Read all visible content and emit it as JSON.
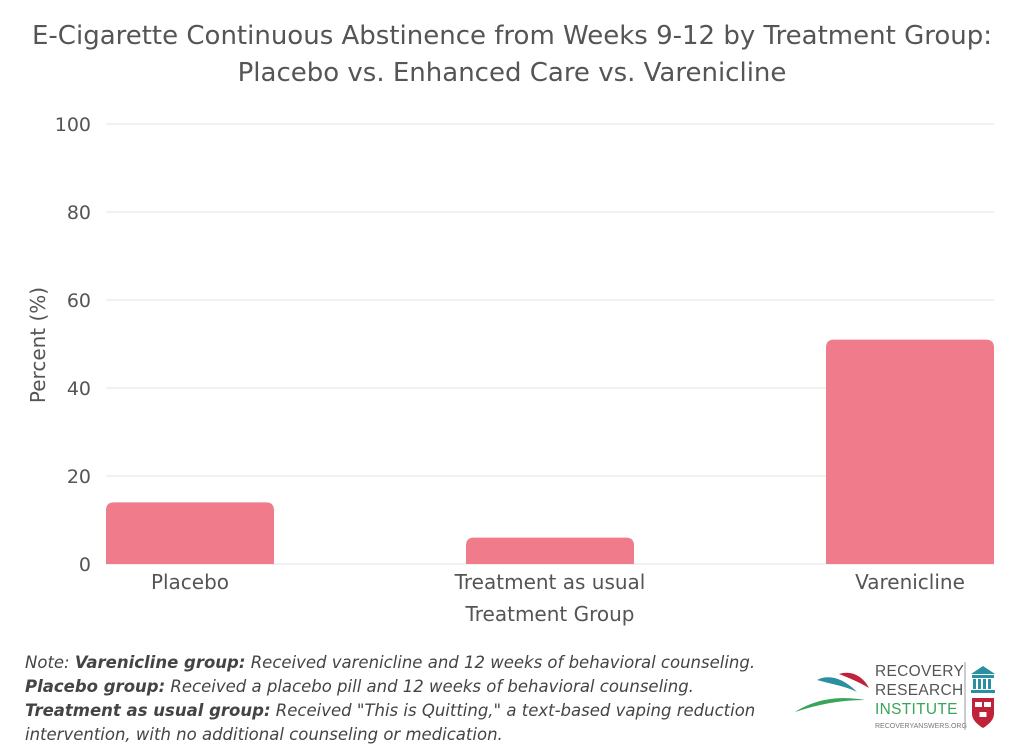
{
  "chart_data": {
    "type": "bar",
    "title_lines": [
      "E-Cigarette Continuous Abstinence from Weeks 9-12 by Treatment Group:",
      "Placebo vs. Enhanced Care vs. Varenicline"
    ],
    "categories": [
      "Placebo",
      "Treatment as usual",
      "Varenicline"
    ],
    "values": [
      14,
      6,
      51
    ],
    "xlabel": "Treatment Group",
    "ylabel": "Percent (%)",
    "ylim": [
      0,
      100
    ],
    "yticks": [
      0,
      20,
      40,
      60,
      80,
      100
    ],
    "grid": true,
    "bar_color": "#ef7b8b",
    "grid_color": "#e3e3e3"
  },
  "notes": [
    {
      "lead": "Note: ",
      "label": "Varenicline group:",
      "text": " Received varenicline and 12 weeks of behavioral counseling."
    },
    {
      "lead": "",
      "label": "Placebo group:",
      "text": " Received a placebo pill and 12 weeks of behavioral counseling."
    },
    {
      "lead": "",
      "label": "Treatment as usual group:",
      "text": " Received \"This is Quitting,\" a text-based vaping reduction"
    },
    {
      "lead": "",
      "label": "",
      "text": "intervention, with no additional counseling or medication."
    }
  ],
  "logo": {
    "line1": "RECOVERY",
    "line2": "RESEARCH",
    "line3": "INSTITUTE",
    "url": "RECOVERYANSWERS.ORG",
    "colors": {
      "teal": "#2a8fa0",
      "red": "#c0223a",
      "green": "#3aa45a",
      "navy": "#1e3c6e"
    }
  }
}
